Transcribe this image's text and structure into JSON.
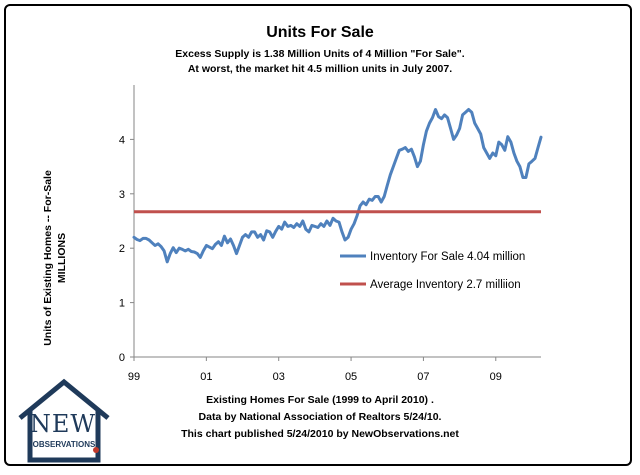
{
  "chart_data": {
    "type": "line",
    "title": "Units For Sale",
    "subtitle": [
      "Excess Supply is 1.38 Million Units of 4 Million \"For Sale\".",
      "At worst, the market hit 4.5 million units in July 2007."
    ],
    "ylabel": [
      "Units of Existing Homes -- For-Sale",
      "MILLIONS"
    ],
    "xlabel": "",
    "x_tick_labels": [
      "99",
      "01",
      "03",
      "05",
      "07",
      "09"
    ],
    "y_tick_labels": [
      "0",
      "1",
      "2",
      "3",
      "4"
    ],
    "ylim": [
      0,
      5
    ],
    "x_range": [
      "1999-01",
      "2010-04"
    ],
    "grid": false,
    "legend_position": "right",
    "series": [
      {
        "name": "Inventory For Sale 4.04 million",
        "color": "#4f81bd",
        "x_start": "1999-01",
        "frequency": "monthly",
        "values": [
          2.2,
          2.16,
          2.14,
          2.18,
          2.18,
          2.15,
          2.1,
          2.05,
          2.08,
          2.03,
          1.95,
          1.75,
          1.9,
          2.01,
          1.92,
          2.0,
          1.98,
          1.95,
          1.98,
          1.94,
          1.93,
          1.9,
          1.83,
          1.95,
          2.05,
          2.02,
          1.99,
          2.07,
          2.12,
          2.05,
          2.22,
          2.1,
          2.17,
          2.05,
          1.9,
          2.05,
          2.2,
          2.25,
          2.2,
          2.3,
          2.3,
          2.2,
          2.25,
          2.15,
          2.32,
          2.3,
          2.2,
          2.31,
          2.4,
          2.35,
          2.48,
          2.4,
          2.42,
          2.38,
          2.45,
          2.4,
          2.5,
          2.35,
          2.3,
          2.42,
          2.4,
          2.38,
          2.45,
          2.4,
          2.5,
          2.42,
          2.55,
          2.5,
          2.48,
          2.3,
          2.15,
          2.2,
          2.35,
          2.45,
          2.6,
          2.78,
          2.85,
          2.8,
          2.9,
          2.88,
          2.95,
          2.95,
          2.85,
          2.95,
          3.15,
          3.35,
          3.5,
          3.65,
          3.8,
          3.82,
          3.85,
          3.78,
          3.82,
          3.68,
          3.5,
          3.6,
          3.9,
          4.15,
          4.3,
          4.4,
          4.55,
          4.42,
          4.38,
          4.45,
          4.4,
          4.2,
          4.0,
          4.08,
          4.2,
          4.45,
          4.5,
          4.55,
          4.5,
          4.3,
          4.2,
          4.1,
          3.85,
          3.75,
          3.65,
          3.75,
          3.7,
          3.95,
          3.9,
          3.8,
          4.05,
          3.95,
          3.75,
          3.6,
          3.5,
          3.3,
          3.3,
          3.55,
          3.6,
          3.65,
          3.85,
          4.04
        ]
      },
      {
        "name": "Average Inventory 2.7 milliion",
        "color": "#c0504d",
        "constant": 2.67
      }
    ]
  },
  "footer": [
    "Existing Homes For Sale (1999 to April 2010) .",
    "Data by National Association of Realtors 5/24/10.",
    "This chart published 5/24/2010 by NewObservations.net"
  ],
  "logo": {
    "text": "NEW",
    "subtext": "OBSERVATIONS",
    "icon": "house-outline-icon",
    "color": "#1f3a5a"
  }
}
